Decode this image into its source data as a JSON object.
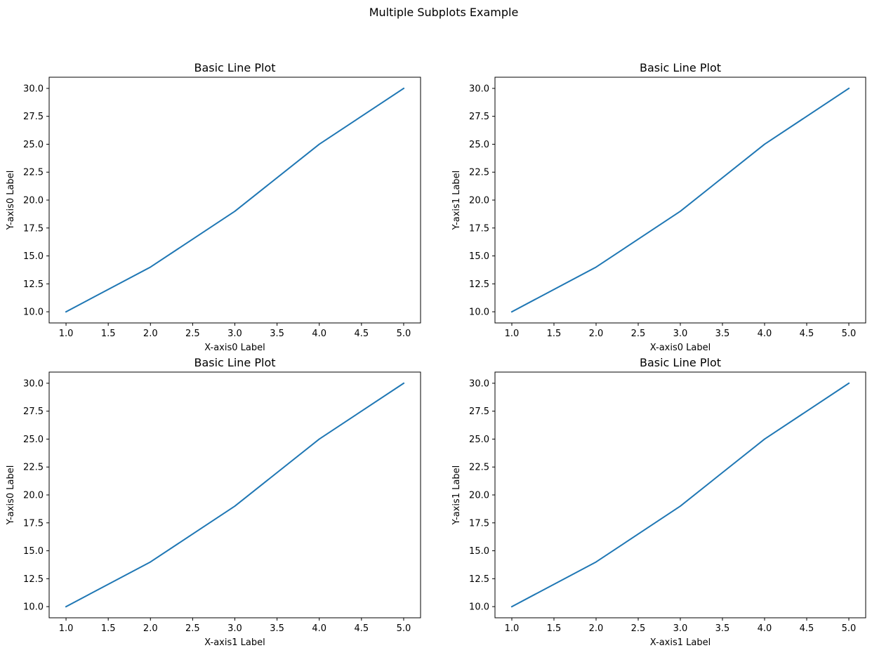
{
  "figure": {
    "title": "Multiple Subplots Example"
  },
  "chart_data": [
    {
      "type": "line",
      "title": "Basic Line Plot",
      "xlabel": "X-axis0 Label",
      "ylabel": "Y-axis0 Label",
      "xlim": [
        0.8,
        5.2
      ],
      "ylim": [
        9.0,
        31.0
      ],
      "xticks": [
        "1.0",
        "1.5",
        "2.0",
        "2.5",
        "3.0",
        "3.5",
        "4.0",
        "4.5",
        "5.0"
      ],
      "yticks": [
        "10.0",
        "12.5",
        "15.0",
        "17.5",
        "20.0",
        "22.5",
        "25.0",
        "27.5",
        "30.0"
      ],
      "grid": false,
      "series": [
        {
          "x": [
            1,
            2,
            3,
            4,
            5
          ],
          "y": [
            10,
            14,
            19,
            25,
            30
          ],
          "color": "#1f77b4"
        }
      ]
    },
    {
      "type": "line",
      "title": "Basic Line Plot",
      "xlabel": "X-axis0 Label",
      "ylabel": "Y-axis1 Label",
      "xlim": [
        0.8,
        5.2
      ],
      "ylim": [
        9.0,
        31.0
      ],
      "xticks": [
        "1.0",
        "1.5",
        "2.0",
        "2.5",
        "3.0",
        "3.5",
        "4.0",
        "4.5",
        "5.0"
      ],
      "yticks": [
        "10.0",
        "12.5",
        "15.0",
        "17.5",
        "20.0",
        "22.5",
        "25.0",
        "27.5",
        "30.0"
      ],
      "grid": false,
      "series": [
        {
          "x": [
            1,
            2,
            3,
            4,
            5
          ],
          "y": [
            10,
            14,
            19,
            25,
            30
          ],
          "color": "#1f77b4"
        }
      ]
    },
    {
      "type": "line",
      "title": "Basic Line Plot",
      "xlabel": "X-axis1 Label",
      "ylabel": "Y-axis0 Label",
      "xlim": [
        0.8,
        5.2
      ],
      "ylim": [
        9.0,
        31.0
      ],
      "xticks": [
        "1.0",
        "1.5",
        "2.0",
        "2.5",
        "3.0",
        "3.5",
        "4.0",
        "4.5",
        "5.0"
      ],
      "yticks": [
        "10.0",
        "12.5",
        "15.0",
        "17.5",
        "20.0",
        "22.5",
        "25.0",
        "27.5",
        "30.0"
      ],
      "grid": false,
      "series": [
        {
          "x": [
            1,
            2,
            3,
            4,
            5
          ],
          "y": [
            10,
            14,
            19,
            25,
            30
          ],
          "color": "#1f77b4"
        }
      ]
    },
    {
      "type": "line",
      "title": "Basic Line Plot",
      "xlabel": "X-axis1 Label",
      "ylabel": "Y-axis1 Label",
      "xlim": [
        0.8,
        5.2
      ],
      "ylim": [
        9.0,
        31.0
      ],
      "xticks": [
        "1.0",
        "1.5",
        "2.0",
        "2.5",
        "3.0",
        "3.5",
        "4.0",
        "4.5",
        "5.0"
      ],
      "yticks": [
        "10.0",
        "12.5",
        "15.0",
        "17.5",
        "20.0",
        "22.5",
        "25.0",
        "27.5",
        "30.0"
      ],
      "grid": false,
      "series": [
        {
          "x": [
            1,
            2,
            3,
            4,
            5
          ],
          "y": [
            10,
            14,
            19,
            25,
            30
          ],
          "color": "#1f77b4"
        }
      ]
    }
  ]
}
